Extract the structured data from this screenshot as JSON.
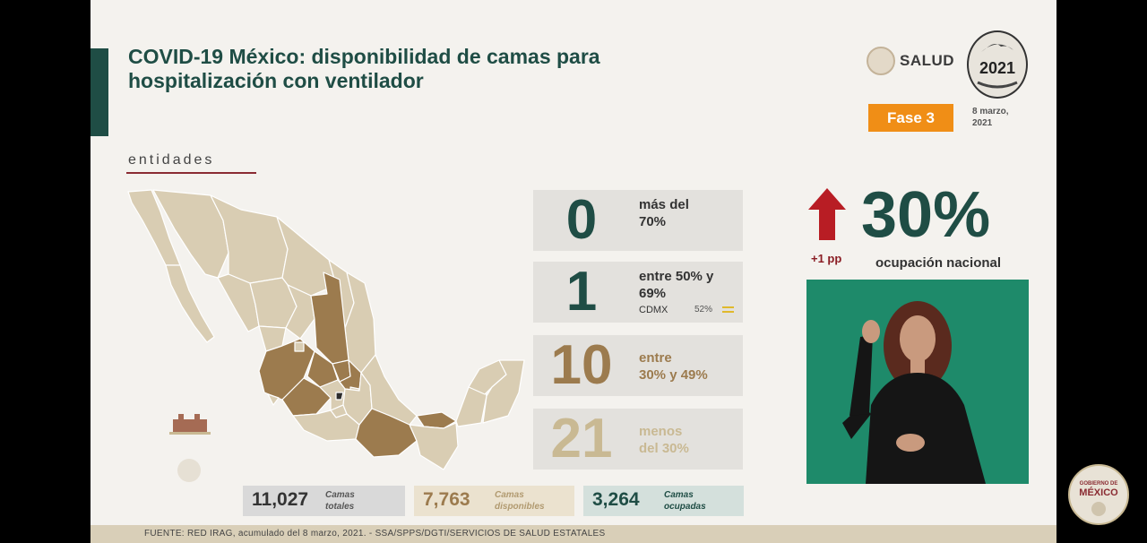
{
  "header": {
    "title_line1": "COVID-19 México: disponibilidad de camas para",
    "title_line2": "hospitalización con ventilador",
    "logo_text": "SALUD",
    "logo_year": "2021",
    "phase": "Fase 3",
    "date_line1": "8 marzo,",
    "date_line2": "2021"
  },
  "map": {
    "label": "entidades",
    "colors": {
      "base": "#d9cdb3",
      "highlight": "#9c7b4e",
      "border": "#ffffff"
    }
  },
  "stats": [
    {
      "number": "0",
      "line1": "más del",
      "line2": "70%",
      "color": "#1f4d45"
    },
    {
      "number": "1",
      "line1": "entre 50% y",
      "line2": "69%",
      "city": "CDMX",
      "pct": "52%",
      "color": "#1f4d45"
    },
    {
      "number": "10",
      "line1": "entre",
      "line2": "30% y 49%",
      "color": "#9c7b4e"
    },
    {
      "number": "21",
      "line1": "menos",
      "line2": "del 30%",
      "color": "#c9b993"
    }
  ],
  "national": {
    "change": "+1 pp",
    "percent": "30%",
    "label": "ocupación nacional"
  },
  "summary": {
    "total": {
      "value": "11,027",
      "line1": "Camas",
      "line2": "totales"
    },
    "available": {
      "value": "7,763",
      "line1": "Camas",
      "line2": "disponibles"
    },
    "occupied": {
      "value": "3,264",
      "line1": "Camas",
      "line2": "ocupadas"
    }
  },
  "footer": {
    "source": "FUENTE: RED IRAG, acumulado del 8 marzo, 2021.  -  SSA/SPPS/DGTI/SERVICIOS DE SALUD ESTATALES"
  },
  "gob_logo": {
    "line1": "GOBIERNO DE",
    "line2": "MÉXICO"
  }
}
